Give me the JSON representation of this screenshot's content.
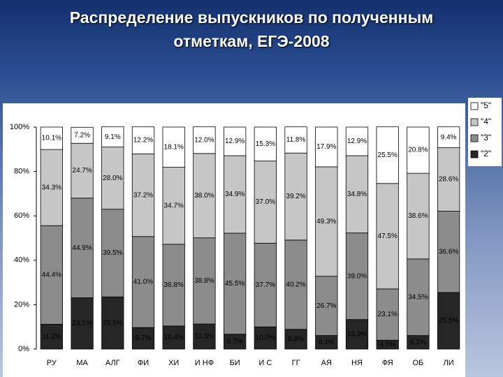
{
  "chart_data": {
    "type": "stacked-bar",
    "title": "Распределение выпускников по полученным отметкам, ЕГЭ-2008",
    "categories": [
      "РУ",
      "МА",
      "АЛГ",
      "ФИ",
      "ХИ",
      "И НФ",
      "БИ",
      "И С",
      "ГГ",
      "АЯ",
      "НЯ",
      "ФЯ",
      "ОБ",
      "ЛИ"
    ],
    "series": [
      {
        "name": "\"2\"",
        "color": "#262626",
        "values": [
          11.2,
          23.1,
          23.5,
          9.7,
          10.4,
          11.3,
          6.7,
          10.0,
          8.9,
          6.1,
          13.3,
          4.0,
          6.1,
          25.5
        ],
        "value_labels": [
          "11.2%",
          "23.1%",
          "23.5%",
          "9.7%",
          "10.4%",
          "11.3%",
          "6.7%",
          "10.0%",
          "8.9%",
          "6.1%",
          "13.3%",
          "4.0%",
          "6.1%",
          "25.5%"
        ]
      },
      {
        "name": "\"3\"",
        "color": "#8c8c8c",
        "values": [
          44.4,
          44.9,
          39.5,
          41.0,
          36.8,
          38.8,
          45.5,
          37.7,
          40.2,
          26.7,
          39.0,
          23.1,
          34.5,
          36.6
        ],
        "value_labels": [
          "44.4%",
          "44.9%",
          "39.5%",
          "41.0%",
          "36.8%",
          "38.8%",
          "45.5%",
          "37.7%",
          "40.2%",
          "26.7%",
          "39.0%",
          "23.1%",
          "34.5%",
          "36.6%"
        ]
      },
      {
        "name": "\"4\"",
        "color": "#c6c6c6",
        "values": [
          34.3,
          24.7,
          28.0,
          37.2,
          34.7,
          38.0,
          34.9,
          37.0,
          39.2,
          49.3,
          34.8,
          47.5,
          38.6,
          28.6
        ],
        "value_labels": [
          "34.3%",
          "24.7%",
          "28.0%",
          "37.2%",
          "34.7%",
          "38.0%",
          "34.9%",
          "37.0%",
          "39.2%",
          "49.3%",
          "34.8%",
          "47.5%",
          "38.6%",
          "28.6%"
        ]
      },
      {
        "name": "\"5\"",
        "color": "#ffffff",
        "values": [
          10.1,
          7.2,
          9.1,
          12.2,
          18.1,
          12.0,
          12.9,
          15.3,
          11.8,
          17.9,
          12.9,
          25.5,
          20.8,
          9.4
        ],
        "value_labels": [
          "10.1%",
          "7.2%",
          "9.1%",
          "12.2%",
          "18.1%",
          "12.0%",
          "12.9%",
          "15.3%",
          "11.8%",
          "17.9%",
          "12.9%",
          "25.5%",
          "20.8%",
          "9.4%"
        ]
      }
    ],
    "ylim": [
      0,
      100
    ],
    "yticks": [
      {
        "value": 0,
        "label": "0%"
      },
      {
        "value": 20,
        "label": "20%"
      },
      {
        "value": 40,
        "label": "40%"
      },
      {
        "value": 60,
        "label": "60%"
      },
      {
        "value": 80,
        "label": "80%"
      },
      {
        "value": 100,
        "label": "100%"
      }
    ]
  }
}
